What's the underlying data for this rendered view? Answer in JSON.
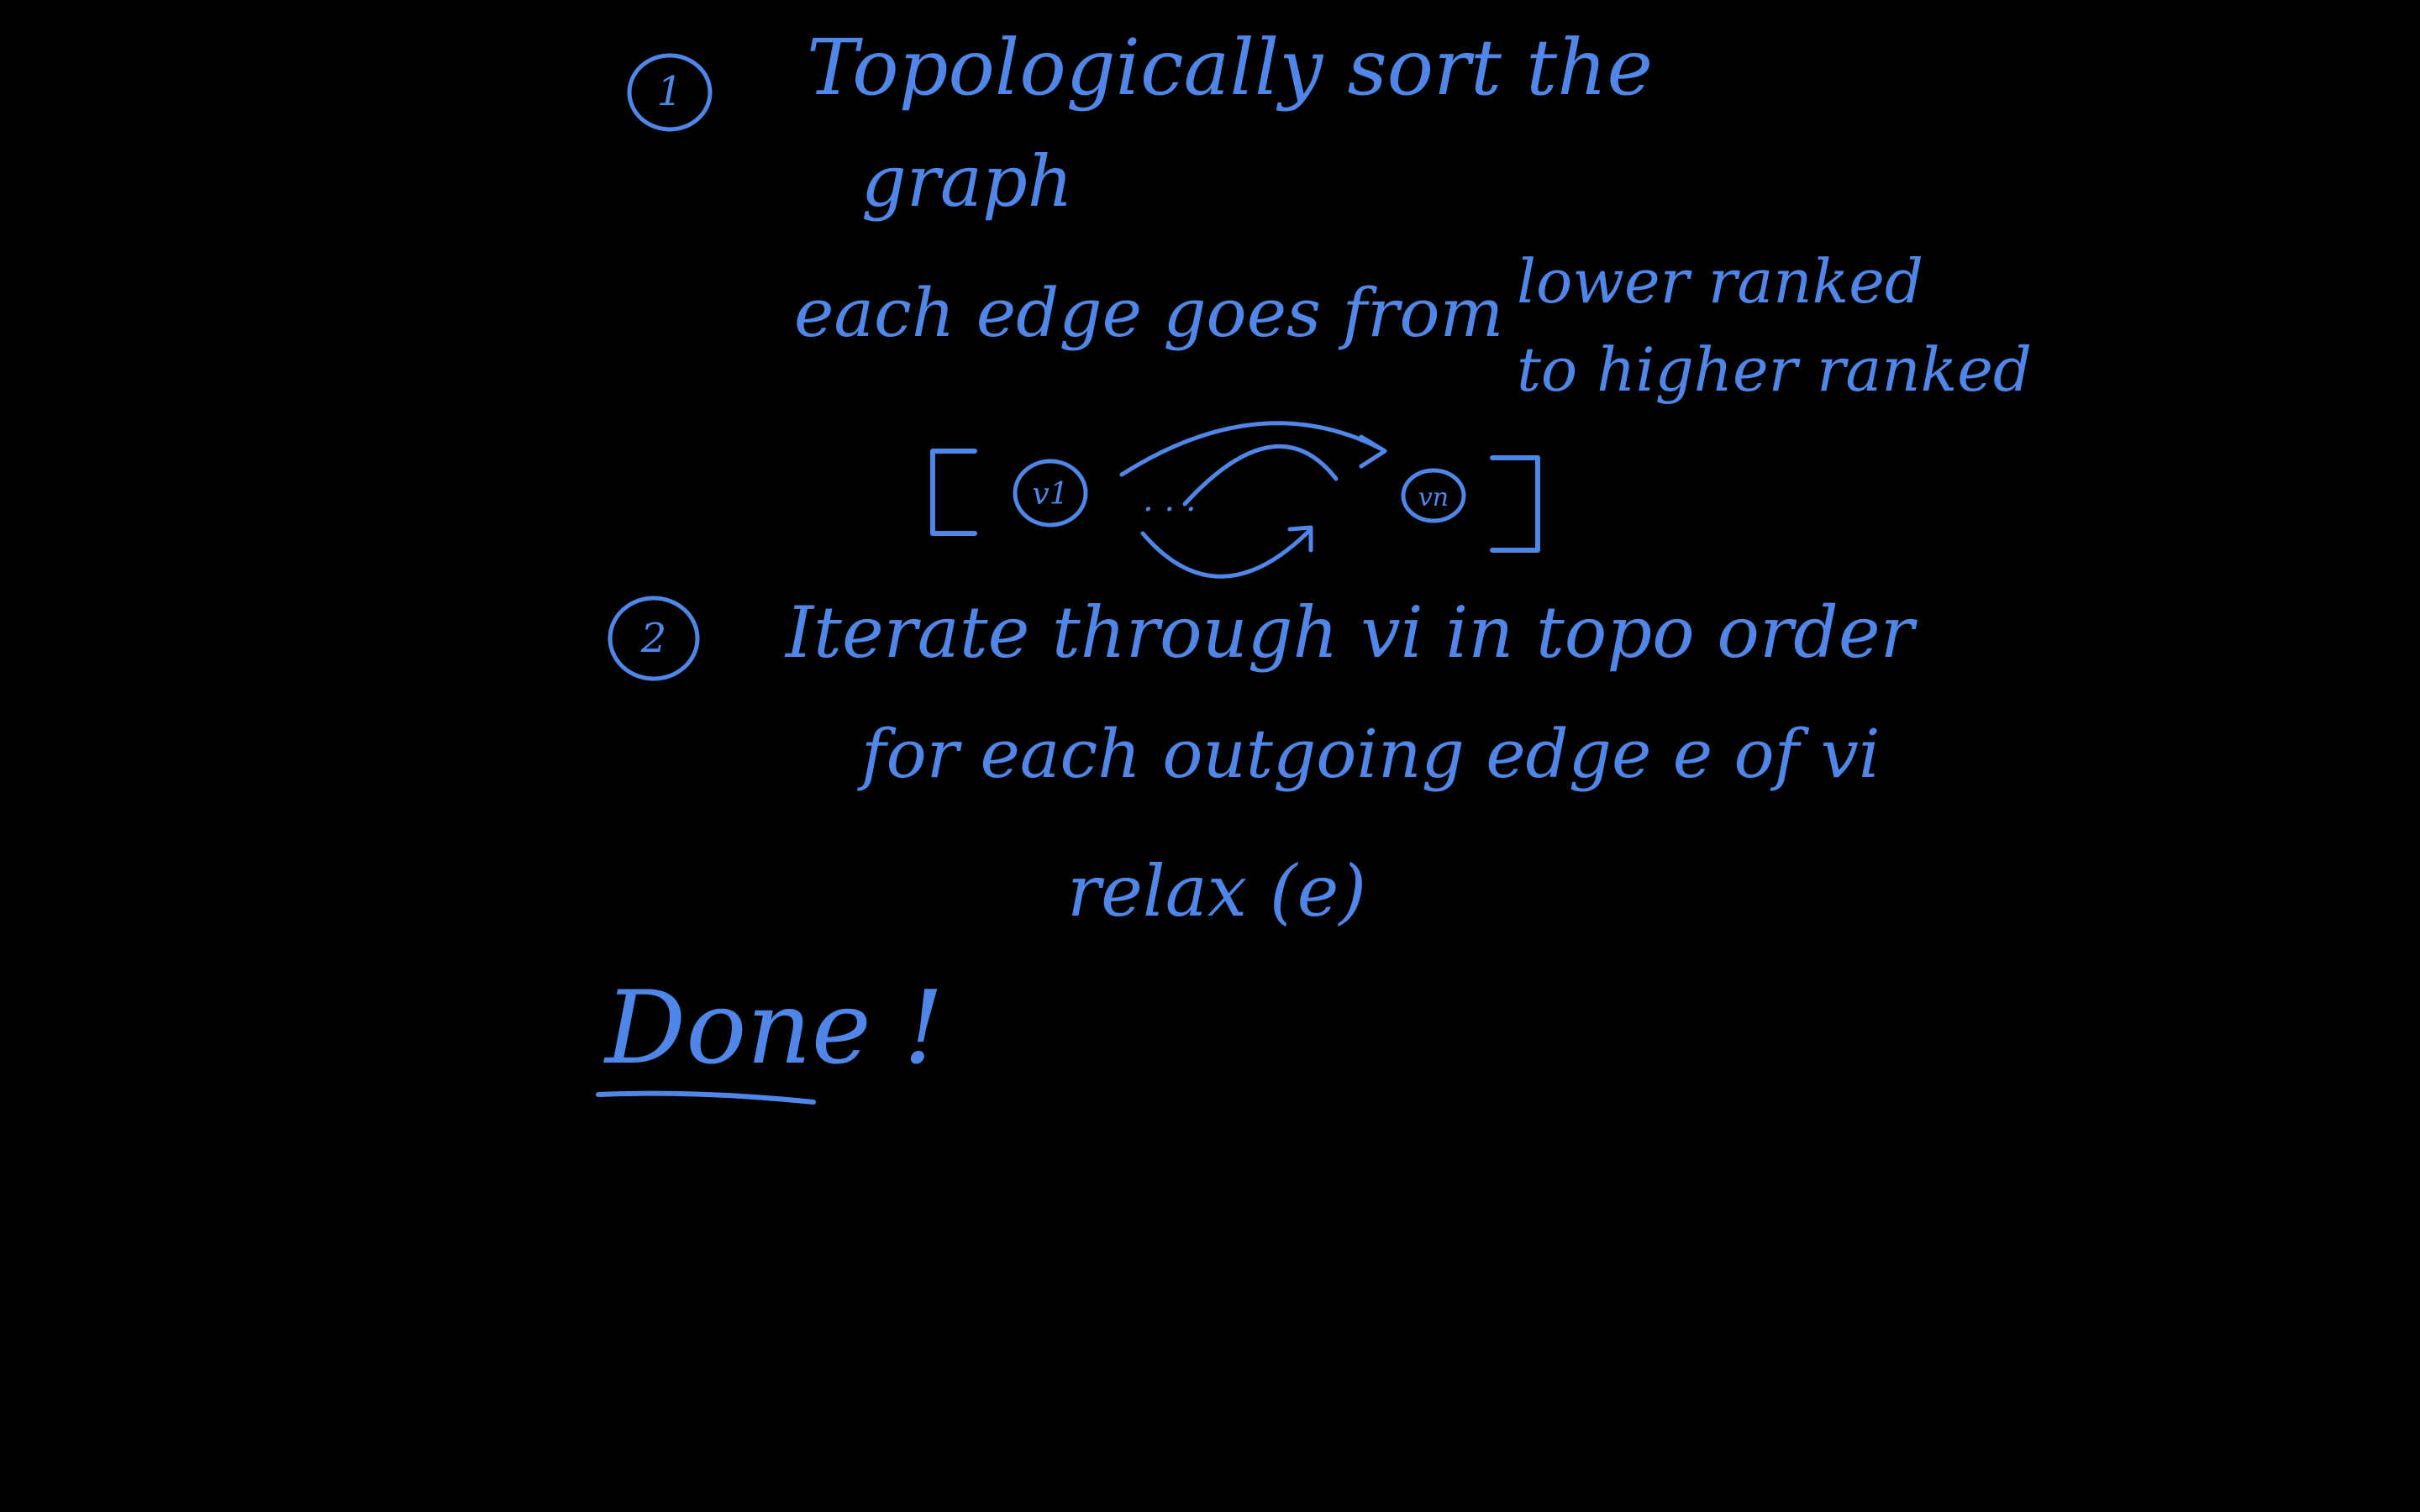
{
  "ink_color": "#4f86e8",
  "background_color": "#000000",
  "step1": {
    "number": "1",
    "line1": "Topologically sort the",
    "line2": "graph",
    "note_line1": "each edge goes from",
    "note_right1": "lower ranked",
    "note_right2": "to higher ranked",
    "node_first": "v1",
    "node_last": "vn",
    "dots": ". . ."
  },
  "step2": {
    "number": "2",
    "line1": "Iterate through vi in topo order",
    "line2": "for each outgoing edge e of vi",
    "line3": "relax (e)"
  },
  "done": "Done !"
}
